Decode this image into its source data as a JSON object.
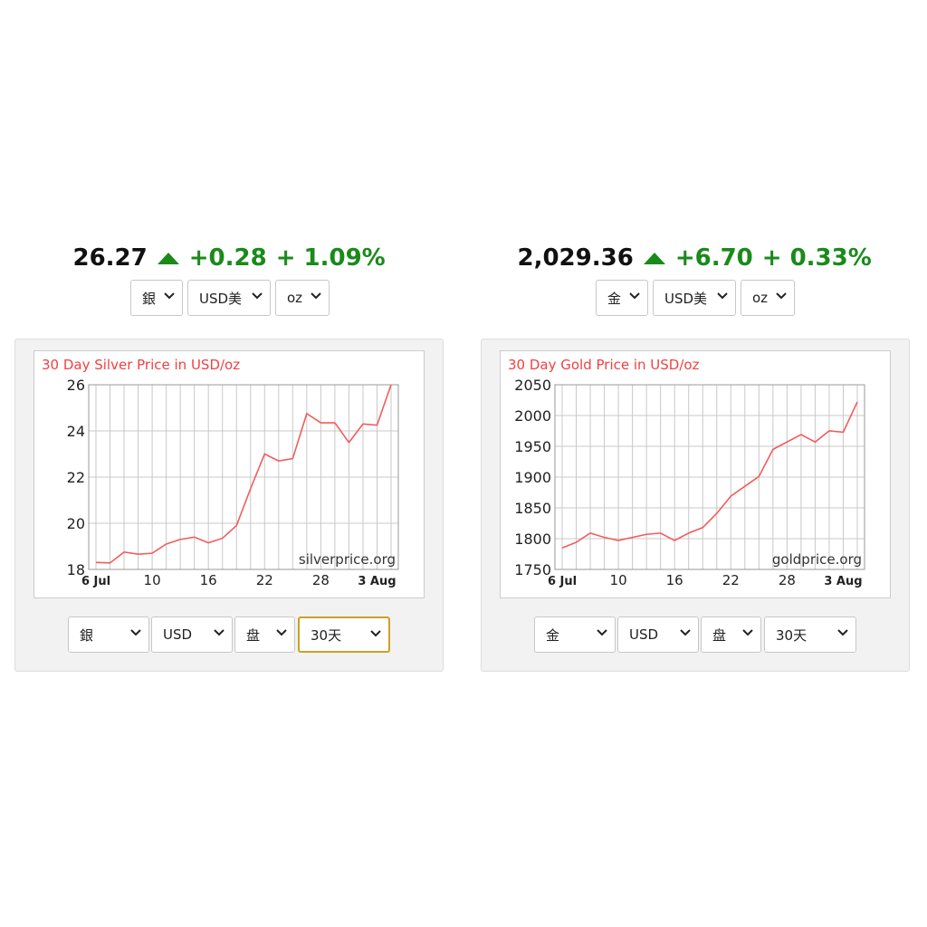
{
  "widgets": [
    {
      "price": "26.27",
      "change": "+0.28",
      "percent": "+ 1.09%",
      "top_selects": [
        "銀",
        "USD美",
        "oz"
      ],
      "bottom_selects": [
        "銀",
        "USD",
        "盘",
        "30天"
      ]
    },
    {
      "price": "2,029.36",
      "change": "+6.70",
      "percent": "+ 0.33%",
      "top_selects": [
        "金",
        "USD美",
        "oz"
      ],
      "bottom_selects": [
        "金",
        "USD",
        "盘",
        "30天"
      ]
    }
  ],
  "chart_data": [
    {
      "type": "line",
      "title": "30 Day Silver Price in USD/oz",
      "watermark": "silverprice.org",
      "categories": [
        "6 Jul",
        null,
        null,
        null,
        "10",
        null,
        null,
        null,
        "16",
        null,
        null,
        null,
        "22",
        null,
        null,
        null,
        "28",
        null,
        null,
        null,
        "3 Aug",
        null
      ],
      "series": [
        {
          "name": "Silver",
          "color": "#f25c5c",
          "values": [
            18.3,
            18.28,
            18.75,
            18.66,
            18.7,
            19.1,
            19.3,
            19.4,
            19.15,
            19.35,
            19.9,
            21.5,
            23.0,
            22.7,
            22.8,
            24.75,
            24.35,
            24.35,
            23.5,
            24.3,
            24.25,
            26.0
          ]
        }
      ],
      "ylim": [
        18,
        26
      ],
      "yticks": [
        18,
        20,
        22,
        24,
        26
      ],
      "grid": true
    },
    {
      "type": "line",
      "title": "30 Day Gold Price in USD/oz",
      "watermark": "goldprice.org",
      "categories": [
        "6 Jul",
        null,
        null,
        null,
        "10",
        null,
        null,
        null,
        "16",
        null,
        null,
        null,
        "22",
        null,
        null,
        null,
        "28",
        null,
        null,
        null,
        "3 Aug",
        null
      ],
      "series": [
        {
          "name": "Gold",
          "color": "#f25c5c",
          "values": [
            1785,
            1794,
            1809,
            1802,
            1797,
            1802,
            1807,
            1809,
            1797,
            1809,
            1818,
            1841,
            1869,
            1885,
            1901,
            1945,
            1957,
            1969,
            1957,
            1975,
            1973,
            2022
          ]
        }
      ],
      "ylim": [
        1750,
        2050
      ],
      "yticks": [
        1750,
        1800,
        1850,
        1900,
        1950,
        2000,
        2050
      ],
      "grid": true
    }
  ]
}
